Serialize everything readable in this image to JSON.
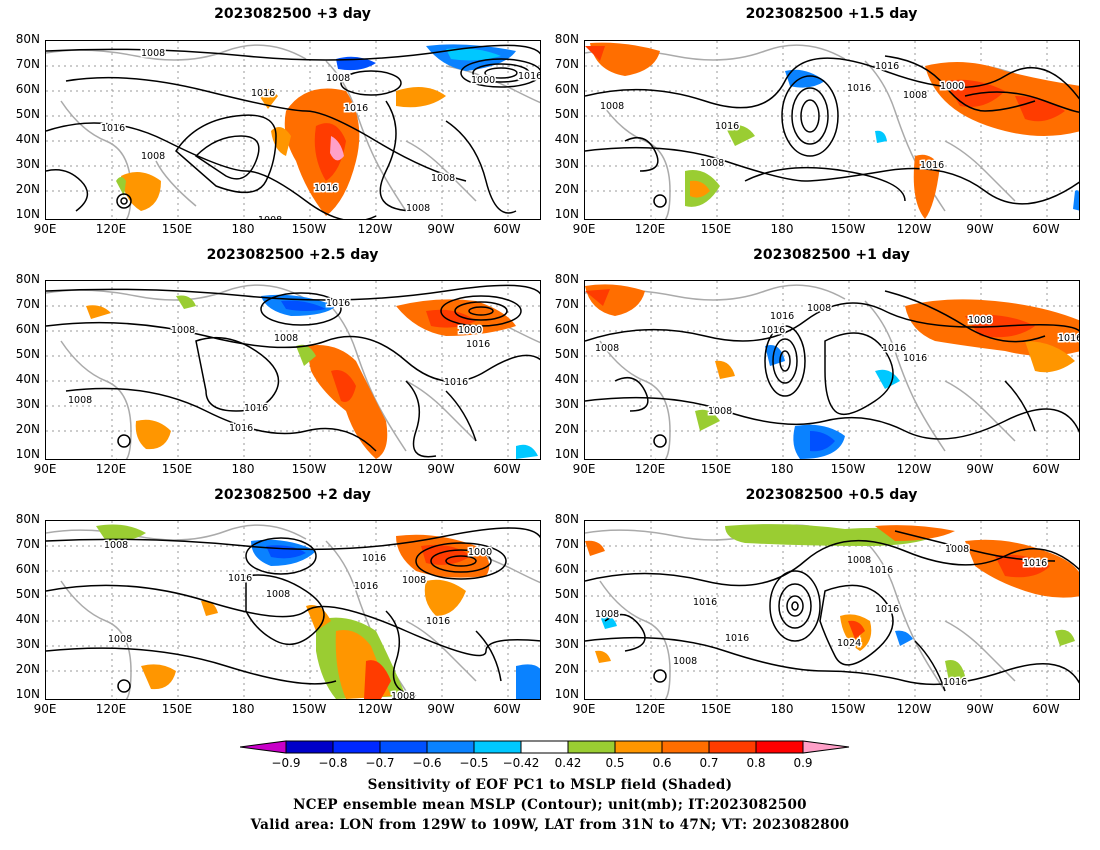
{
  "panels": [
    {
      "title": "2023082500  +3 day"
    },
    {
      "title": "2023082500  +1.5 day"
    },
    {
      "title": "2023082500  +2.5 day"
    },
    {
      "title": "2023082500  +1 day"
    },
    {
      "title": "2023082500  +2 day"
    },
    {
      "title": "2023082500  +0.5 day"
    }
  ],
  "lat_ticks": [
    "80N",
    "70N",
    "60N",
    "50N",
    "40N",
    "30N",
    "20N",
    "10N"
  ],
  "lon_ticks": [
    "90E",
    "120E",
    "150E",
    "180",
    "150W",
    "120W",
    "90W",
    "60W"
  ],
  "contour_labels": [
    [
      "1008",
      "1008",
      "1016",
      "1016",
      "1016",
      "1008",
      "1000",
      "1016",
      "1016",
      "1008",
      "1008",
      "1008"
    ],
    [
      "1016",
      "1016",
      "1008",
      "1000",
      "1008",
      "1016",
      "1008",
      "1016"
    ],
    [
      "1008",
      "1008",
      "1000",
      "1016",
      "1016",
      "1016",
      "1008",
      "1016",
      "1016"
    ],
    [
      "1016",
      "1008",
      "1016",
      "1008",
      "1008",
      "1016",
      "1016",
      "1016",
      "1008"
    ],
    [
      "1008",
      "1016",
      "1016",
      "1008",
      "1008",
      "1016",
      "1000",
      "1016",
      "1008",
      "1008"
    ],
    [
      "1008",
      "1016",
      "1008",
      "1016",
      "1016",
      "1016",
      "1008",
      "1016",
      "1024",
      "1008",
      "1016"
    ]
  ],
  "colorbar": {
    "labels": [
      "−0.9",
      "−0.8",
      "−0.7",
      "−0.6",
      "−0.5",
      "−0.42",
      "0.42",
      "0.5",
      "0.6",
      "0.7",
      "0.8",
      "0.9"
    ],
    "colors": [
      "#0000c8",
      "#0028ff",
      "#0050ff",
      "#0a82ff",
      "#00c8ff",
      "#ffffff",
      "#9acd32",
      "#ff9600",
      "#ff6e00",
      "#ff3c00",
      "#ff0000"
    ],
    "left_tip": "#c800c8",
    "right_tip": "#ffa0c8"
  },
  "caption": {
    "line1": "Sensitivity of EOF PC1 to MSLP field (Shaded)",
    "line2": "NCEP ensemble mean MSLP (Contour); unit(mb); IT:2023082500",
    "line3": "Valid area: LON from 129W to 109W, LAT from 31N to 47N; VT: 2023082800"
  }
}
